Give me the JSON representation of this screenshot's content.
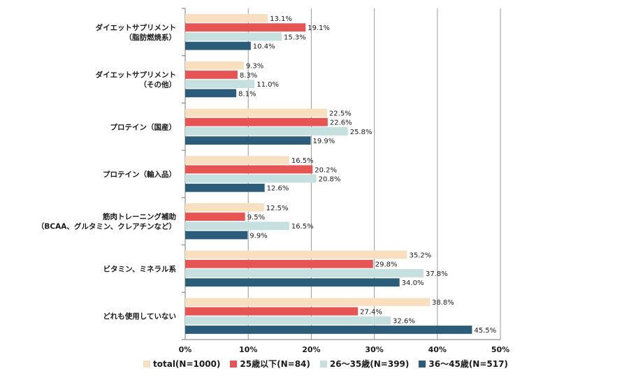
{
  "chart_data": {
    "type": "bar",
    "orientation": "horizontal",
    "categories": [
      [
        "ダイエットサプリメント",
        "（脂肪燃焼系）"
      ],
      [
        "ダイエットサプリメント",
        "（その他）"
      ],
      [
        "プロテイン（国産）"
      ],
      [
        "プロテイン（輸入品）"
      ],
      [
        "筋肉トレーニング補助",
        "（BCAA、グルタミン、クレアチンなど）"
      ],
      [
        "ビタミン、ミネラル系"
      ],
      [
        "どれも使用していない"
      ]
    ],
    "series": [
      {
        "name": "total(N=1000)",
        "color": "#f7dfc0",
        "values": [
          13.1,
          9.3,
          22.5,
          16.5,
          12.5,
          35.2,
          38.8
        ]
      },
      {
        "name": "25歳以下(N=84)",
        "color": "#e65454",
        "values": [
          19.1,
          8.3,
          22.6,
          20.2,
          9.5,
          29.8,
          27.4
        ]
      },
      {
        "name": "26～35歳(N=399)",
        "color": "#c6e0df",
        "values": [
          15.3,
          11.0,
          25.8,
          20.8,
          16.5,
          37.8,
          32.6
        ]
      },
      {
        "name": "36～45歳(N=517)",
        "color": "#2b5d7a",
        "values": [
          10.4,
          8.1,
          19.9,
          12.6,
          9.9,
          34.0,
          45.5
        ]
      }
    ],
    "xlim": [
      0,
      50
    ],
    "xticks": [
      "0%",
      "10%",
      "20%",
      "30%",
      "40%",
      "50%"
    ],
    "value_suffix": "%",
    "grid": true,
    "legend_position": "bottom"
  }
}
